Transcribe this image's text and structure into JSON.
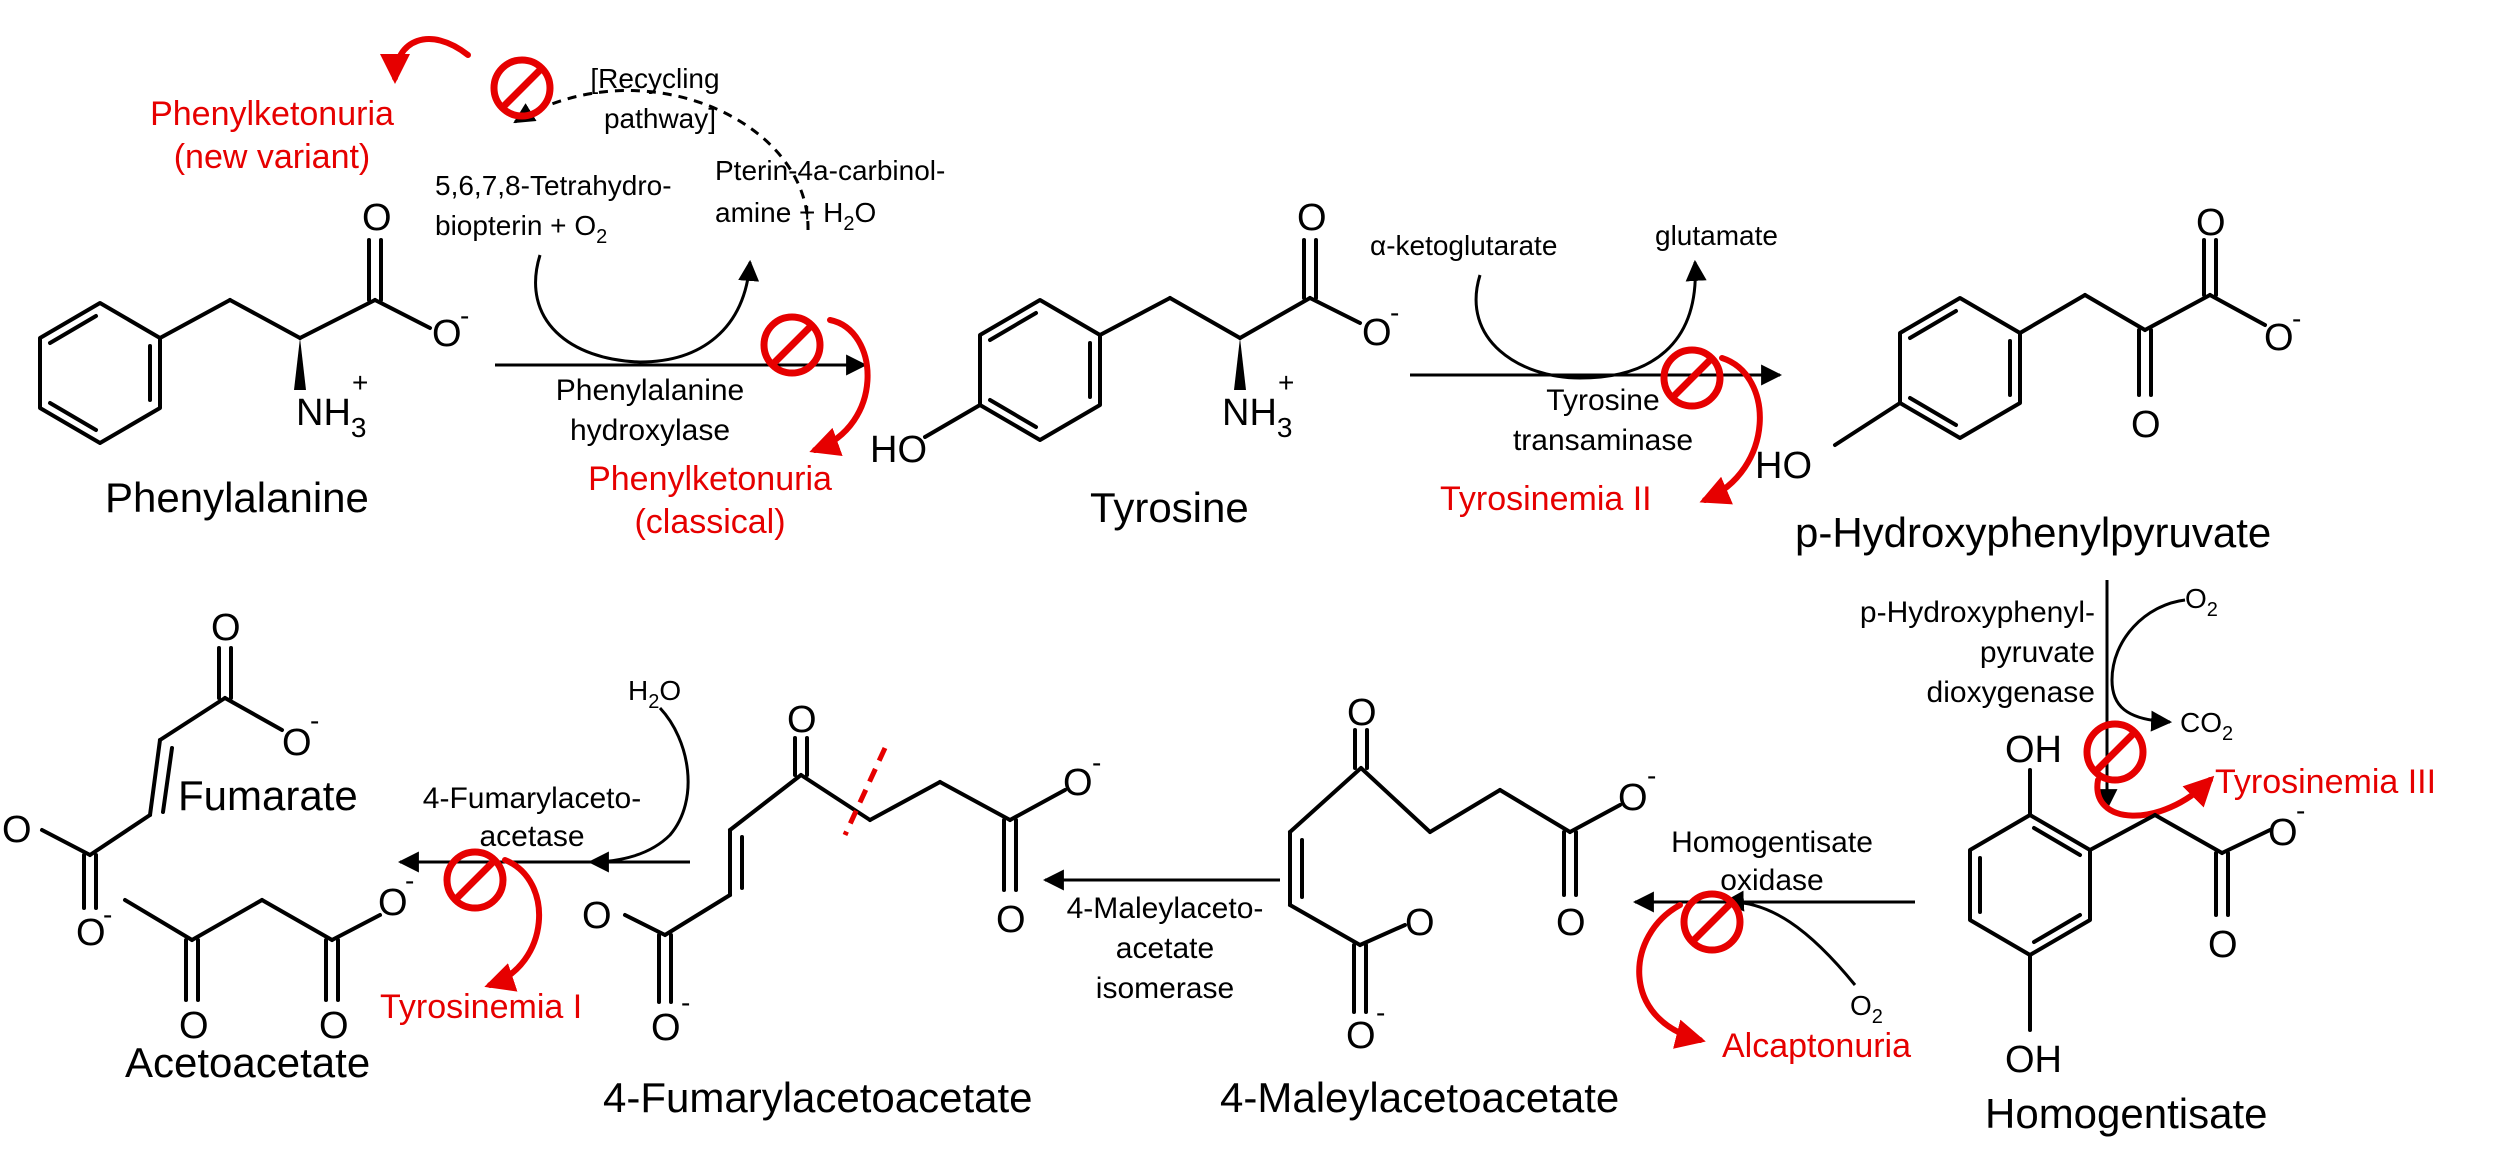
{
  "compounds": {
    "phenylalanine": "Phenylalanine",
    "tyrosine": "Tyrosine",
    "hpp": "p-Hydroxyphenylpyruvate",
    "homogentisate": "Homogentisate",
    "maleylacetoacetate": "4-Maleylacetoacetate",
    "fumarylacetoacetate": "4-Fumarylacetoacetate",
    "fumarate": "Fumarate",
    "acetoacetate": "Acetoacetate"
  },
  "enzymes": {
    "pah": [
      "Phenylalanine",
      "hydroxylase"
    ],
    "tat": [
      "Tyrosine",
      "transaminase"
    ],
    "hppd": [
      "p-Hydroxyphenyl-",
      "pyruvate",
      "dioxygenase"
    ],
    "hgd": [
      "Homogentisate",
      "oxidase"
    ],
    "mai": [
      "4-Maleylaceto-",
      "acetate",
      "isomerase"
    ],
    "fah": [
      "4-Fumarylaceto-",
      "acetase"
    ]
  },
  "cofactors": {
    "bh4": [
      "5,6,7,8-Tetrahydro-",
      "biopterin + O",
      "2"
    ],
    "pterin": [
      "Pterin-4a-carbinol-",
      "amine + H",
      "2",
      "O"
    ],
    "recycling": [
      "[Recycling",
      "pathway]"
    ],
    "akg": "α-ketoglutarate",
    "glutamate": "glutamate",
    "o2": [
      "O",
      "2"
    ],
    "co2": [
      "CO",
      "2"
    ],
    "h2o": [
      "H",
      "2",
      "O"
    ]
  },
  "diseases": {
    "pku_new": [
      "Phenylketonuria",
      "(new variant)"
    ],
    "pku_classical": [
      "Phenylketonuria",
      "(classical)"
    ],
    "tyr1": "Tyrosinemia I",
    "tyr2": "Tyrosinemia II",
    "tyr3": "Tyrosinemia III",
    "alcap": "Alcaptonuria"
  },
  "atoms": {
    "O": "O",
    "OH": "OH",
    "HO": "HO",
    "N": "NH",
    "N_sub": "3",
    "plus": "+",
    "minus": "-"
  },
  "colors": {
    "disease": "#e60000",
    "ink": "#000000"
  }
}
